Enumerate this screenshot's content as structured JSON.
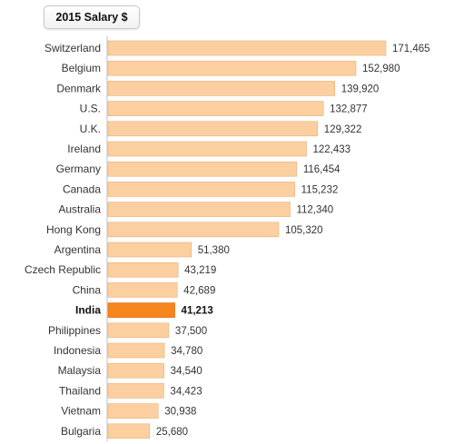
{
  "chart_data": {
    "type": "bar",
    "orientation": "horizontal",
    "title": "2015 Salary $",
    "categories": [
      "Switzerland",
      "Belgium",
      "Denmark",
      "U.S.",
      "U.K.",
      "Ireland",
      "Germany",
      "Canada",
      "Australia",
      "Hong Kong",
      "Argentina",
      "Czech Republic",
      "China",
      "India",
      "Philippines",
      "Indonesia",
      "Malaysia",
      "Thailand",
      "Vietnam",
      "Bulgaria"
    ],
    "values": [
      171465,
      152980,
      139920,
      132877,
      129322,
      122433,
      116454,
      115232,
      112340,
      105320,
      51380,
      43219,
      42689,
      41213,
      37500,
      34780,
      34540,
      34423,
      30938,
      25680
    ],
    "value_labels": [
      "171,465",
      "152,980",
      "139,920",
      "132,877",
      "129,322",
      "122,433",
      "116,454",
      "115,232",
      "112,340",
      "105,320",
      "51,380",
      "43,219",
      "42,689",
      "41,213",
      "37,500",
      "34,780",
      "34,540",
      "34,423",
      "30,938",
      "25,680"
    ],
    "highlight": "India",
    "colors": {
      "bar": "#fbcf9f",
      "bar_border": "#e8b07a",
      "highlight": "#f7841c",
      "highlight_border": "#d66a0a",
      "axis": "#bfbfbf"
    },
    "grid": false,
    "legend": "none"
  }
}
